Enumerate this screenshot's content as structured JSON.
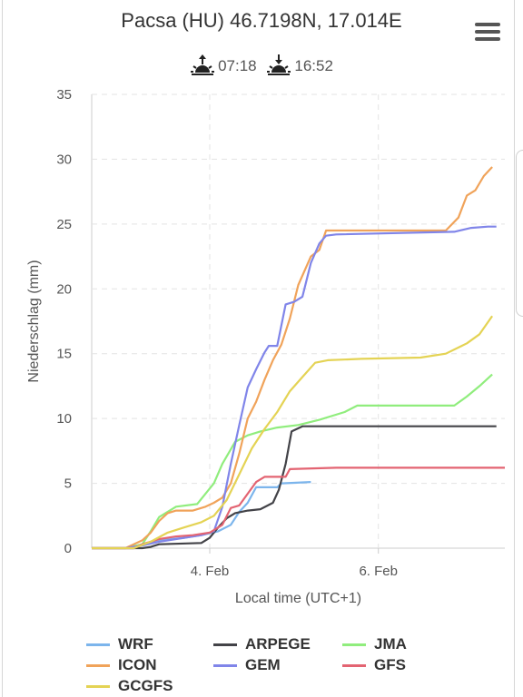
{
  "header": {
    "title": "Pacsa (HU) 46.7198N, 17.014E",
    "sunrise": "07:18",
    "sunset": "16:52"
  },
  "chart_data": {
    "type": "line",
    "title": "",
    "xlabel": "Local time (UTC+1)",
    "ylabel": "Niederschlag (mm)",
    "ylim": [
      0,
      35
    ],
    "xlim": [
      2.6,
      7.5
    ],
    "y_ticks": [
      "0",
      "5",
      "10",
      "15",
      "20",
      "25",
      "30",
      "35"
    ],
    "x_ticks": [
      {
        "x": 4,
        "label": "4. Feb"
      },
      {
        "x": 6,
        "label": "6. Feb"
      }
    ],
    "x_unit": "days (February)",
    "grid": true,
    "legend_position": "bottom",
    "series": [
      {
        "name": "WRF",
        "color": "#7cb5ec",
        "points": [
          [
            2.6,
            0
          ],
          [
            3.1,
            0
          ],
          [
            3.2,
            0.3
          ],
          [
            3.4,
            0.6
          ],
          [
            3.7,
            0.8
          ],
          [
            3.9,
            1
          ],
          [
            4.1,
            1.3
          ],
          [
            4.25,
            1.8
          ],
          [
            4.35,
            2.8
          ],
          [
            4.45,
            3.5
          ],
          [
            4.55,
            4.7
          ],
          [
            4.8,
            4.7
          ],
          [
            4.85,
            5
          ],
          [
            5.2,
            5.1
          ]
        ]
      },
      {
        "name": "ARPEGE",
        "color": "#434348",
        "points": [
          [
            2.6,
            0
          ],
          [
            3.2,
            0
          ],
          [
            3.3,
            0.1
          ],
          [
            3.4,
            0.3
          ],
          [
            3.9,
            0.4
          ],
          [
            4.0,
            0.8
          ],
          [
            4.1,
            1.6
          ],
          [
            4.2,
            2.3
          ],
          [
            4.3,
            2.7
          ],
          [
            4.45,
            2.9
          ],
          [
            4.6,
            3
          ],
          [
            4.75,
            3.5
          ],
          [
            4.82,
            4.5
          ],
          [
            4.9,
            6.5
          ],
          [
            4.97,
            9
          ],
          [
            5.1,
            9.4
          ],
          [
            7.4,
            9.4
          ]
        ]
      },
      {
        "name": "JMA",
        "color": "#90ed7d",
        "points": [
          [
            2.6,
            0
          ],
          [
            3.0,
            0
          ],
          [
            3.2,
            0.3
          ],
          [
            3.3,
            1.3
          ],
          [
            3.4,
            2.4
          ],
          [
            3.6,
            3.2
          ],
          [
            3.85,
            3.4
          ],
          [
            4.05,
            5
          ],
          [
            4.15,
            6.5
          ],
          [
            4.3,
            8.2
          ],
          [
            4.45,
            8.7
          ],
          [
            4.6,
            9
          ],
          [
            4.8,
            9.3
          ],
          [
            5.05,
            9.5
          ],
          [
            5.3,
            9.9
          ],
          [
            5.6,
            10.5
          ],
          [
            5.75,
            11
          ],
          [
            6.9,
            11
          ],
          [
            7.05,
            11.7
          ],
          [
            7.2,
            12.5
          ],
          [
            7.35,
            13.4
          ]
        ]
      },
      {
        "name": "ICON",
        "color": "#f0a35a",
        "points": [
          [
            2.6,
            0
          ],
          [
            3.0,
            0
          ],
          [
            3.2,
            0.6
          ],
          [
            3.3,
            1.2
          ],
          [
            3.4,
            2.1
          ],
          [
            3.5,
            2.7
          ],
          [
            3.6,
            2.9
          ],
          [
            3.8,
            2.9
          ],
          [
            3.95,
            3.2
          ],
          [
            4.05,
            3.5
          ],
          [
            4.15,
            3.9
          ],
          [
            4.25,
            5
          ],
          [
            4.35,
            7.3
          ],
          [
            4.45,
            10
          ],
          [
            4.55,
            11.3
          ],
          [
            4.65,
            13
          ],
          [
            4.75,
            14.5
          ],
          [
            4.85,
            15.7
          ],
          [
            4.95,
            17.7
          ],
          [
            5.05,
            20.3
          ],
          [
            5.2,
            22.5
          ],
          [
            5.3,
            23
          ],
          [
            5.38,
            24.5
          ],
          [
            6.8,
            24.5
          ],
          [
            6.95,
            25.5
          ],
          [
            7.05,
            27.2
          ],
          [
            7.15,
            27.6
          ],
          [
            7.25,
            28.7
          ],
          [
            7.35,
            29.4
          ]
        ]
      },
      {
        "name": "GEM",
        "color": "#8085e9",
        "points": [
          [
            2.6,
            0
          ],
          [
            3.0,
            0
          ],
          [
            3.2,
            0.2
          ],
          [
            3.4,
            0.5
          ],
          [
            3.6,
            0.7
          ],
          [
            3.9,
            1
          ],
          [
            4.05,
            1.3
          ],
          [
            4.15,
            3.2
          ],
          [
            4.25,
            6.5
          ],
          [
            4.35,
            9.5
          ],
          [
            4.45,
            12.4
          ],
          [
            4.55,
            13.8
          ],
          [
            4.65,
            15.1
          ],
          [
            4.7,
            15.6
          ],
          [
            4.8,
            15.6
          ],
          [
            4.9,
            18.8
          ],
          [
            5.0,
            19
          ],
          [
            5.1,
            19.4
          ],
          [
            5.2,
            22
          ],
          [
            5.3,
            23.5
          ],
          [
            5.38,
            24.1
          ],
          [
            5.5,
            24.2
          ],
          [
            6.9,
            24.4
          ],
          [
            7.1,
            24.7
          ],
          [
            7.3,
            24.8
          ],
          [
            7.4,
            24.8
          ]
        ]
      },
      {
        "name": "GFS",
        "color": "#e36472",
        "points": [
          [
            2.6,
            0
          ],
          [
            3.1,
            0
          ],
          [
            3.2,
            0.3
          ],
          [
            3.4,
            0.7
          ],
          [
            3.6,
            0.9
          ],
          [
            3.8,
            1
          ],
          [
            4.0,
            1.2
          ],
          [
            4.15,
            1.8
          ],
          [
            4.25,
            3.1
          ],
          [
            4.35,
            3.3
          ],
          [
            4.45,
            4.2
          ],
          [
            4.55,
            5.1
          ],
          [
            4.65,
            5.5
          ],
          [
            4.9,
            5.5
          ],
          [
            4.95,
            6.1
          ],
          [
            5.5,
            6.2
          ],
          [
            7.5,
            6.2
          ]
        ]
      },
      {
        "name": "GCGFS",
        "color": "#e4d354",
        "points": [
          [
            2.6,
            0
          ],
          [
            3.1,
            0
          ],
          [
            3.3,
            0.5
          ],
          [
            3.5,
            1.2
          ],
          [
            3.7,
            1.6
          ],
          [
            3.9,
            2
          ],
          [
            4.05,
            2.5
          ],
          [
            4.2,
            3.7
          ],
          [
            4.35,
            5.7
          ],
          [
            4.5,
            7.7
          ],
          [
            4.65,
            9.2
          ],
          [
            4.8,
            10.5
          ],
          [
            4.95,
            12.1
          ],
          [
            5.1,
            13.2
          ],
          [
            5.25,
            14.3
          ],
          [
            5.4,
            14.5
          ],
          [
            5.8,
            14.6
          ],
          [
            6.5,
            14.7
          ],
          [
            6.8,
            15
          ],
          [
            7.05,
            15.8
          ],
          [
            7.2,
            16.5
          ],
          [
            7.35,
            17.9
          ]
        ]
      }
    ]
  }
}
